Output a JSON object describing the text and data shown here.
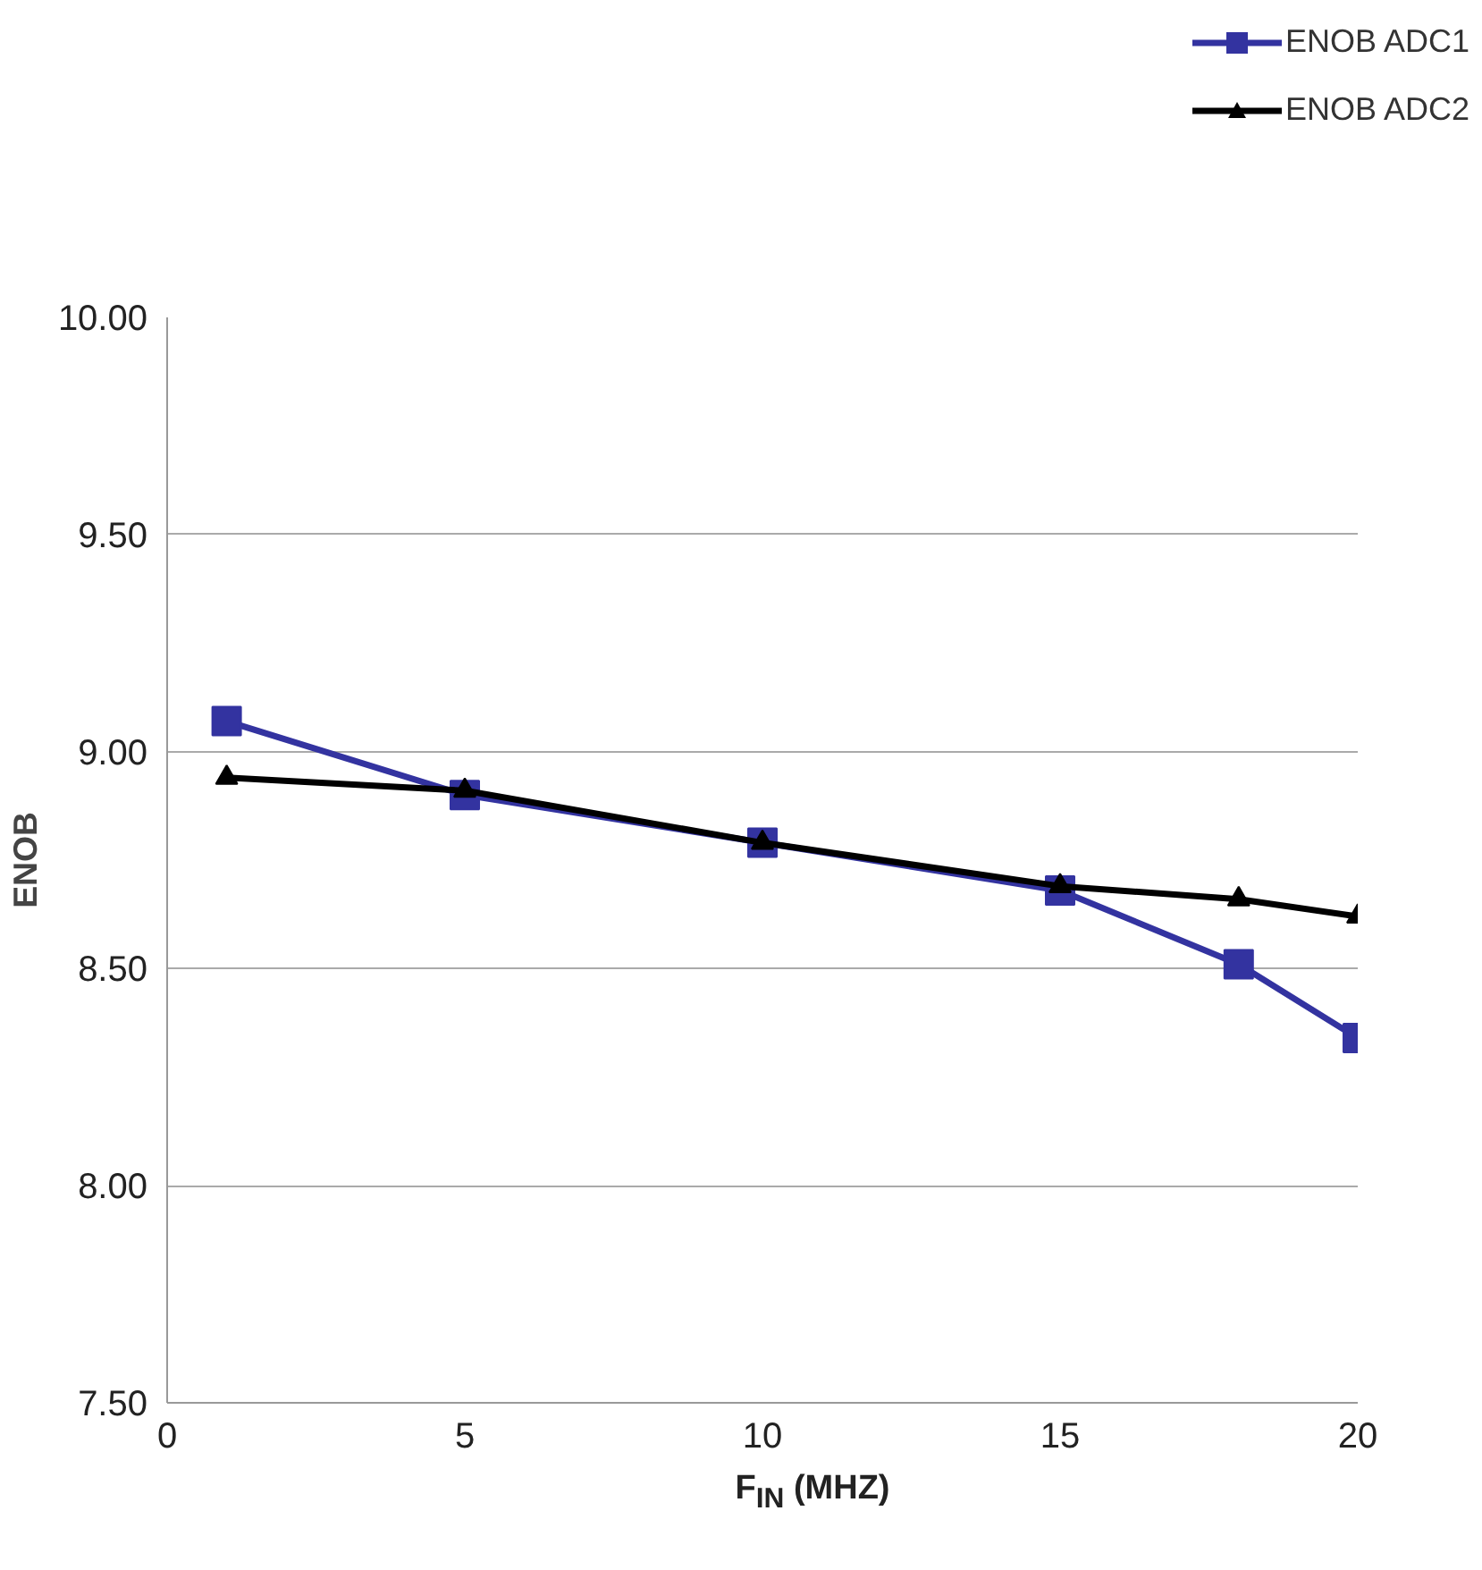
{
  "chart_data": {
    "type": "line",
    "xlabel": "F$_{IN}$ (MHZ)",
    "ylabel": "ENOB",
    "x": [
      1,
      5,
      10,
      15,
      18,
      20
    ],
    "series": [
      {
        "name": "ENOB ADC1",
        "color": "#3333a0",
        "marker": "square",
        "values": [
          9.07,
          8.9,
          8.79,
          8.68,
          8.51,
          8.34
        ]
      },
      {
        "name": "ENOB ADC2",
        "color": "#000000",
        "marker": "triangle",
        "values": [
          8.94,
          8.91,
          8.79,
          8.69,
          8.66,
          8.62
        ]
      }
    ],
    "xlim": [
      0,
      20
    ],
    "xticks": [
      0,
      5,
      10,
      15,
      20
    ],
    "ylim": [
      7.5,
      10.0
    ],
    "yticks": [
      {
        "value": 7.5,
        "label": "7.50"
      },
      {
        "value": 8.0,
        "label": "8.00"
      },
      {
        "value": 8.5,
        "label": "8.50"
      },
      {
        "value": 9.0,
        "label": "9.00"
      },
      {
        "value": 9.5,
        "label": "9.50"
      },
      {
        "value": 10.0,
        "label": "10.00"
      }
    ],
    "grid": "y",
    "legend": "top right",
    "line_style": "solid"
  }
}
